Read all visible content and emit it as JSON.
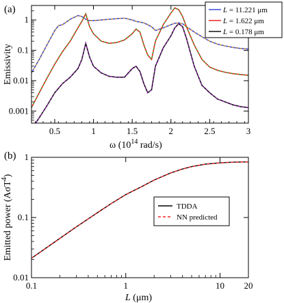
{
  "chart_data": [
    {
      "type": "line",
      "panel_label": "(a)",
      "xlabel": "ω (10",
      "xlabel_sup": "14",
      "xlabel_tail": " rad/s)",
      "ylabel": "Emissivity",
      "xlim": [
        0.2,
        3.0
      ],
      "ylim": [
        0.0004,
        3.0
      ],
      "yscale": "log",
      "xticks": [
        0.5,
        1,
        1.5,
        2,
        2.5,
        3
      ],
      "xtick_labels": [
        "0.5",
        "1",
        "1.5",
        "2",
        "2.5",
        "3"
      ],
      "yticks": [
        0.001,
        0.01,
        0.1,
        1
      ],
      "ytick_labels": [
        "0.001",
        "0.01",
        "0.1",
        "1"
      ],
      "legend_position": "top-right",
      "series": [
        {
          "name": "L = 11.221 μm",
          "legend_prefix": "L",
          "legend_value": " = 11.221 μm",
          "color": "#3b4fd8",
          "overlay_color": "#e8a020",
          "x": [
            0.2,
            0.3,
            0.4,
            0.5,
            0.55,
            0.6,
            0.7,
            0.8,
            0.85,
            0.9,
            0.95,
            1.0,
            1.1,
            1.2,
            1.3,
            1.4,
            1.5,
            1.55,
            1.6,
            1.65,
            1.7,
            1.75,
            1.8,
            1.9,
            2.0,
            2.05,
            2.1,
            2.15,
            2.2,
            2.3,
            2.4,
            2.5,
            2.6,
            2.7,
            2.8,
            2.9,
            3.0
          ],
          "y": [
            0.018,
            0.05,
            0.15,
            0.45,
            0.65,
            0.7,
            1.05,
            1.4,
            1.3,
            1.05,
            0.95,
            0.95,
            1.0,
            1.05,
            1.1,
            1.15,
            1.0,
            0.9,
            0.85,
            0.8,
            0.7,
            0.6,
            0.45,
            0.55,
            0.7,
            0.78,
            0.8,
            0.75,
            0.6,
            0.4,
            0.28,
            0.2,
            0.16,
            0.14,
            0.125,
            0.115,
            0.11
          ]
        },
        {
          "name": "L = 1.622 μm",
          "legend_prefix": "L",
          "legend_value": " = 1.622 μm",
          "color": "#ee2222",
          "overlay_color": "#22aa22",
          "x": [
            0.2,
            0.3,
            0.4,
            0.5,
            0.6,
            0.7,
            0.8,
            0.85,
            0.9,
            0.95,
            1.0,
            1.1,
            1.2,
            1.3,
            1.4,
            1.5,
            1.55,
            1.6,
            1.65,
            1.7,
            1.75,
            1.8,
            1.9,
            2.0,
            2.05,
            2.1,
            2.15,
            2.2,
            2.3,
            2.4,
            2.5,
            2.6,
            2.7,
            2.8,
            2.9,
            3.0
          ],
          "y": [
            0.0013,
            0.004,
            0.012,
            0.035,
            0.09,
            0.2,
            0.55,
            0.9,
            1.6,
            0.6,
            0.35,
            0.2,
            0.17,
            0.18,
            0.22,
            0.35,
            0.5,
            0.4,
            0.15,
            0.07,
            0.05,
            0.2,
            0.7,
            1.7,
            2.5,
            2.2,
            1.3,
            0.6,
            0.15,
            0.05,
            0.028,
            0.022,
            0.019,
            0.017,
            0.016,
            0.015
          ]
        },
        {
          "name": "L = 0.178 μm",
          "legend_prefix": "L",
          "legend_value": " = 0.178 μm",
          "color": "#111111",
          "overlay_color": "#a020c0",
          "x": [
            0.2,
            0.3,
            0.4,
            0.5,
            0.6,
            0.7,
            0.8,
            0.85,
            0.9,
            0.95,
            1.0,
            1.1,
            1.2,
            1.3,
            1.4,
            1.5,
            1.55,
            1.6,
            1.65,
            1.7,
            1.75,
            1.8,
            1.9,
            2.0,
            2.05,
            2.1,
            2.15,
            2.2,
            2.3,
            2.4,
            2.5,
            2.6,
            2.7,
            2.8,
            2.9,
            3.0
          ],
          "y": [
            0.00025,
            0.0006,
            0.0015,
            0.004,
            0.008,
            0.013,
            0.025,
            0.05,
            0.17,
            0.06,
            0.03,
            0.018,
            0.014,
            0.013,
            0.013,
            0.025,
            0.03,
            0.02,
            0.008,
            0.004,
            0.005,
            0.03,
            0.12,
            0.3,
            0.55,
            0.75,
            0.6,
            0.25,
            0.03,
            0.007,
            0.004,
            0.0025,
            0.002,
            0.0016,
            0.0014,
            0.0013
          ]
        }
      ]
    },
    {
      "type": "line",
      "panel_label": "(b)",
      "xlabel_prefix": "L",
      "xlabel": " (μm)",
      "ylabel": "Emitted power (AσT",
      "ylabel_sup": "4",
      "ylabel_tail": ")",
      "xscale": "log",
      "yscale": "log",
      "xlim": [
        0.1,
        20
      ],
      "ylim": [
        0.01,
        1
      ],
      "xticks": [
        0.1,
        1,
        10,
        20
      ],
      "xtick_labels": [
        "0.1",
        "1",
        "10",
        "20"
      ],
      "yticks": [
        0.01,
        0.1,
        1
      ],
      "ytick_labels": [
        "0.01",
        "0.1",
        "1"
      ],
      "legend_position": "center-right",
      "series": [
        {
          "name": "TDDA",
          "color": "#000000",
          "dash": "solid",
          "x": [
            0.1,
            0.2,
            0.3,
            0.5,
            0.7,
            1.0,
            1.5,
            2.0,
            3.0,
            4.0,
            5.0,
            7.0,
            10.0,
            14.0,
            20.0
          ],
          "y": [
            0.021,
            0.045,
            0.07,
            0.12,
            0.17,
            0.24,
            0.33,
            0.42,
            0.55,
            0.64,
            0.7,
            0.77,
            0.81,
            0.83,
            0.84
          ]
        },
        {
          "name": "NN predicted",
          "color": "#ee2222",
          "dash": "dashed",
          "x": [
            0.1,
            0.2,
            0.3,
            0.5,
            0.7,
            1.0,
            1.5,
            2.0,
            3.0,
            4.0,
            5.0,
            7.0,
            10.0,
            14.0,
            20.0
          ],
          "y": [
            0.021,
            0.045,
            0.07,
            0.12,
            0.17,
            0.24,
            0.33,
            0.42,
            0.55,
            0.64,
            0.7,
            0.77,
            0.81,
            0.83,
            0.84
          ]
        }
      ]
    }
  ]
}
